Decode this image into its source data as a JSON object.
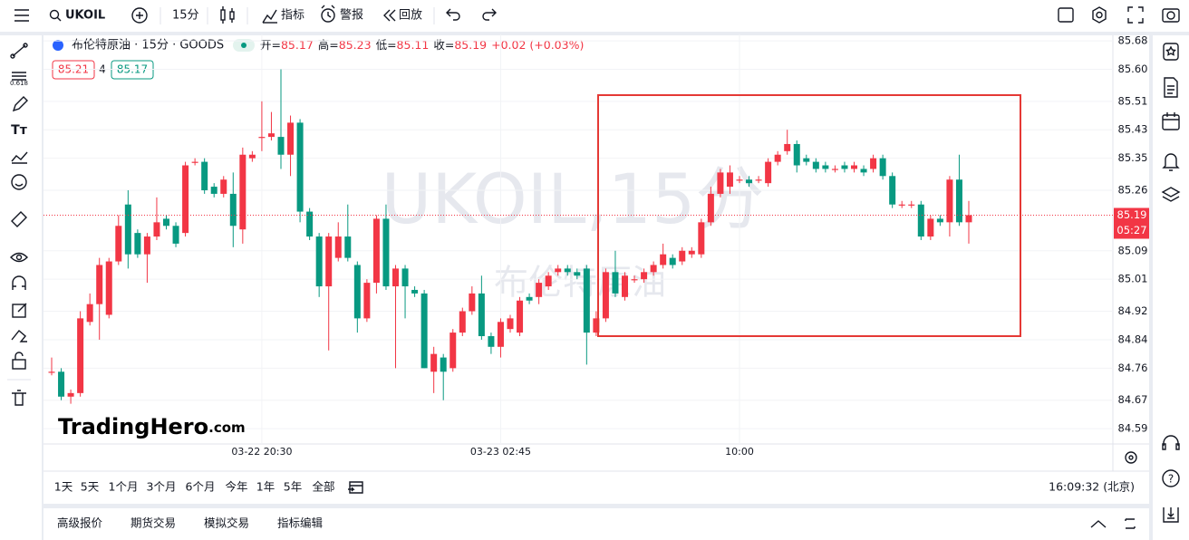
{
  "toolbar": {
    "symbol": "UKOIL",
    "interval": "15分",
    "indicators": "指标",
    "alerts": "警报",
    "replay": "回放"
  },
  "chart_header": {
    "description": "布伦特原油 · 15分 · GOODS",
    "open_label": "开=",
    "open": "85.17",
    "high_label": "高=",
    "high": "85.23",
    "low_label": "低=",
    "low": "85.11",
    "close_label": "收=",
    "close": "85.19",
    "change": "+0.02 (+0.03%)",
    "sell": "85.21",
    "spread": "4",
    "buy": "85.17"
  },
  "watermark": {
    "main": "UKOIL,15分",
    "sub": "布伦特原油"
  },
  "logo": {
    "name": "TradingHero",
    "suffix": ".com"
  },
  "chart_data": {
    "type": "candlestick",
    "up_color": "#f23645",
    "down_color": "#089981",
    "categories": [
      null,
      null,
      null,
      null,
      null,
      null,
      null,
      null,
      null,
      null,
      null,
      null,
      null,
      null,
      null,
      null,
      null,
      null,
      null,
      null,
      null,
      null,
      "03-22 20:30",
      null,
      null,
      null,
      null,
      null,
      null,
      null,
      null,
      null,
      null,
      null,
      null,
      null,
      null,
      null,
      null,
      null,
      null,
      null,
      null,
      null,
      null,
      null,
      null,
      "03-23 02:45",
      null,
      null,
      null,
      null,
      null,
      null,
      null,
      null,
      null,
      null,
      null,
      null,
      null,
      null,
      null,
      null,
      null,
      null,
      null,
      null,
      null,
      null,
      null,
      null,
      "10:00",
      null,
      null,
      null,
      null,
      null,
      null,
      null,
      null,
      null,
      null,
      null,
      null,
      null,
      null,
      null,
      null,
      null,
      null,
      null,
      null,
      null,
      null,
      null,
      null
    ],
    "open": [
      84.75,
      84.75,
      84.68,
      84.69,
      84.89,
      84.94,
      84.91,
      85.06,
      85.22,
      85.14,
      85.08,
      85.13,
      85.18,
      85.16,
      85.14,
      85.34,
      85.34,
      85.27,
      85.25,
      85.25,
      85.15,
      85.35,
      85.41,
      85.41,
      85.41,
      85.36,
      85.45,
      85.2,
      85.13,
      84.99,
      85.07,
      85.13,
      85.05,
      84.9,
      85.0,
      85.18,
      84.99,
      85.04,
      84.98,
      84.97,
      84.75,
      84.79,
      84.76,
      84.86,
      84.92,
      84.97,
      84.85,
      84.82,
      84.87,
      84.86,
      84.96,
      84.96,
      84.99,
      85.03,
      85.04,
      85.03,
      85.04,
      84.86,
      84.9,
      85.03,
      84.96,
      85.01,
      85.01,
      85.03,
      85.05,
      85.07,
      85.06,
      85.08,
      85.08,
      85.17,
      85.25,
      85.27,
      85.29,
      85.29,
      85.29,
      85.28,
      85.34,
      85.37,
      85.39,
      85.35,
      85.34,
      85.33,
      85.32,
      85.33,
      85.32,
      85.32,
      85.32,
      85.35,
      85.3,
      85.22,
      85.22,
      85.22,
      85.13,
      85.18,
      85.17,
      85.29,
      85.17
    ],
    "high": [
      84.79,
      84.76,
      84.7,
      84.92,
      84.97,
      85.07,
      85.07,
      85.19,
      85.26,
      85.15,
      85.14,
      85.24,
      85.19,
      85.17,
      85.34,
      85.35,
      85.35,
      85.28,
      85.3,
      85.31,
      85.38,
      85.37,
      85.51,
      85.48,
      85.6,
      85.47,
      85.46,
      85.21,
      85.14,
      85.14,
      85.17,
      85.22,
      85.06,
      85.01,
      85.19,
      85.22,
      85.05,
      85.05,
      84.99,
      84.98,
      84.82,
      84.8,
      84.87,
      84.93,
      84.99,
      85.02,
      84.86,
      84.9,
      84.91,
      84.96,
      84.97,
      85.01,
      85.03,
      85.05,
      85.05,
      85.04,
      85.05,
      84.92,
      85.04,
      85.09,
      85.03,
      85.02,
      85.04,
      85.06,
      85.11,
      85.08,
      85.1,
      85.1,
      85.18,
      85.27,
      85.32,
      85.33,
      85.3,
      85.3,
      85.3,
      85.35,
      85.37,
      85.43,
      85.4,
      85.36,
      85.35,
      85.34,
      85.33,
      85.34,
      85.34,
      85.33,
      85.36,
      85.36,
      85.31,
      85.23,
      85.23,
      85.23,
      85.19,
      85.19,
      85.3,
      85.36,
      85.23
    ],
    "low": [
      84.74,
      84.67,
      84.66,
      84.68,
      84.88,
      84.84,
      84.9,
      85.05,
      85.04,
      85.07,
      85.0,
      85.12,
      85.15,
      85.1,
      85.13,
      85.33,
      85.25,
      85.24,
      85.24,
      85.1,
      85.11,
      85.34,
      85.37,
      85.4,
      85.32,
      85.3,
      85.17,
      85.12,
      84.96,
      84.81,
      85.06,
      85.06,
      84.86,
      84.89,
      84.97,
      84.98,
      84.76,
      84.9,
      84.96,
      84.76,
      84.69,
      84.67,
      84.75,
      84.85,
      84.91,
      84.84,
      84.8,
      84.79,
      84.86,
      84.85,
      84.94,
      84.94,
      84.98,
      85.02,
      85.02,
      85.01,
      84.77,
      84.85,
      84.89,
      84.96,
      84.95,
      85.0,
      85.0,
      85.02,
      85.04,
      85.04,
      85.05,
      85.07,
      85.07,
      85.16,
      85.24,
      85.25,
      85.28,
      85.27,
      85.28,
      85.27,
      85.33,
      85.36,
      85.31,
      85.33,
      85.31,
      85.31,
      85.31,
      85.31,
      85.31,
      85.3,
      85.31,
      85.29,
      85.21,
      85.21,
      85.21,
      85.12,
      85.12,
      85.16,
      85.13,
      85.16,
      85.11
    ],
    "close": [
      84.75,
      84.68,
      84.69,
      84.9,
      84.94,
      85.05,
      85.06,
      85.16,
      85.08,
      85.08,
      85.13,
      85.17,
      85.16,
      85.11,
      85.33,
      85.34,
      85.26,
      85.25,
      85.29,
      85.16,
      85.36,
      85.36,
      85.41,
      85.42,
      85.36,
      85.45,
      85.2,
      85.13,
      84.99,
      85.13,
      85.13,
      85.07,
      84.9,
      85.0,
      85.18,
      84.99,
      85.04,
      84.99,
      84.97,
      84.76,
      84.8,
      84.75,
      84.86,
      84.92,
      84.97,
      84.85,
      84.82,
      84.89,
      84.9,
      84.95,
      84.95,
      85.0,
      85.02,
      85.04,
      85.03,
      85.02,
      84.86,
      84.9,
      85.03,
      84.97,
      85.02,
      85.01,
      85.03,
      85.05,
      85.08,
      85.05,
      85.09,
      85.09,
      85.17,
      85.25,
      85.31,
      85.31,
      85.29,
      85.28,
      85.29,
      85.34,
      85.36,
      85.39,
      85.33,
      85.34,
      85.32,
      85.32,
      85.32,
      85.32,
      85.33,
      85.31,
      85.35,
      85.3,
      85.22,
      85.22,
      85.22,
      85.13,
      85.18,
      85.17,
      85.29,
      85.17,
      85.19
    ],
    "ylim": [
      84.547,
      85.698
    ],
    "yticks": [
      85.68,
      {
        "value": 85.6,
        "label": "85.60"
      },
      85.51,
      85.43,
      85.35,
      85.26,
      85.09,
      85.01,
      84.92,
      84.84,
      84.76,
      84.67,
      84.59
    ],
    "last_price": 85.19,
    "countdown": "05:27"
  },
  "ranges": [
    "1天",
    "5天",
    "1个月",
    "3个月",
    "6个月",
    "今年",
    "1年",
    "5年",
    "全部"
  ],
  "clock": "16:09:32 (北京)",
  "bottom_tabs": [
    "高级报价",
    "期货交易",
    "模拟交易",
    "指标编辑"
  ]
}
